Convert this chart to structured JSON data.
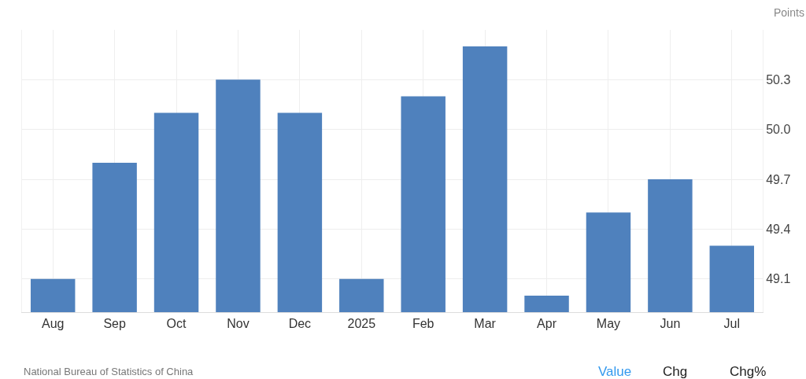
{
  "chart_data": {
    "type": "bar",
    "ylabel": "Points",
    "categories": [
      "Aug",
      "Sep",
      "Oct",
      "Nov",
      "Dec",
      "2025",
      "Feb",
      "Mar",
      "Apr",
      "May",
      "Jun",
      "Jul"
    ],
    "values": [
      49.1,
      49.8,
      50.1,
      50.3,
      50.1,
      49.1,
      50.2,
      50.5,
      49.0,
      49.5,
      49.7,
      49.3
    ],
    "color": "#4f81bd",
    "ylim": [
      48.9,
      50.6
    ],
    "yticks": [
      49.1,
      49.4,
      49.7,
      {
        "value": 50,
        "label": "50.0"
      },
      50.3
    ],
    "grid": true,
    "annotations": [
      "National Bureau of Statistics of China",
      "Value",
      "Chg",
      "Chg%"
    ]
  }
}
